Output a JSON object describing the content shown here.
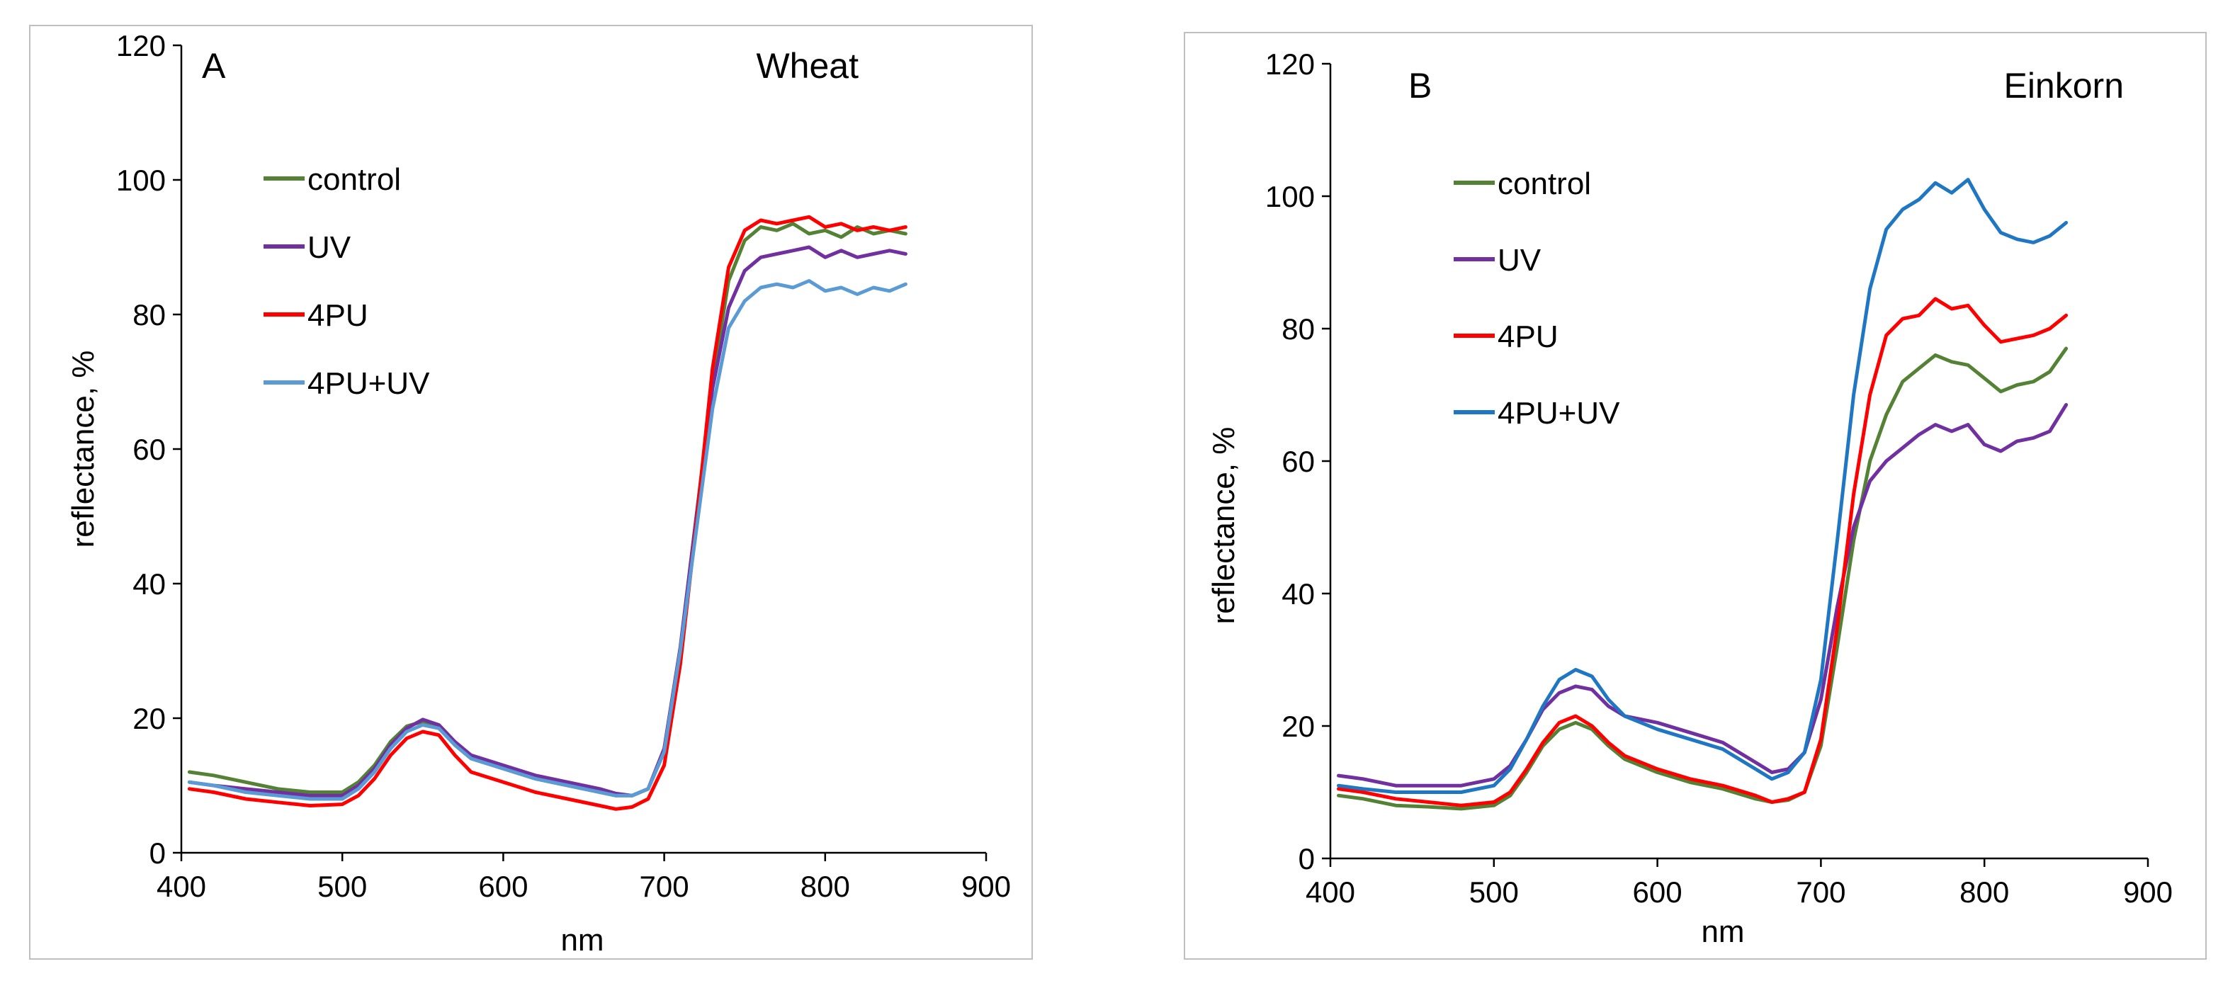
{
  "chart_data": [
    {
      "type": "line",
      "panel_label": "A",
      "crop": "Wheat",
      "xlabel": "nm",
      "ylabel": "reflectance, %",
      "xlim": [
        400,
        900
      ],
      "ylim": [
        0,
        120
      ],
      "xticks": [
        400,
        500,
        600,
        700,
        800,
        900
      ],
      "yticks": [
        0,
        20,
        40,
        60,
        80,
        100,
        120
      ],
      "x": [
        405,
        420,
        440,
        460,
        480,
        500,
        510,
        520,
        530,
        540,
        550,
        560,
        570,
        580,
        600,
        620,
        640,
        660,
        670,
        680,
        690,
        700,
        710,
        720,
        730,
        740,
        750,
        760,
        770,
        780,
        790,
        800,
        810,
        820,
        830,
        840,
        850
      ],
      "series": [
        {
          "name": "control",
          "color": "#548235",
          "values": [
            12.0,
            11.5,
            10.5,
            9.5,
            9.0,
            9.0,
            10.5,
            13.0,
            16.5,
            18.8,
            19.5,
            18.8,
            16.0,
            14.0,
            12.5,
            11.0,
            10.0,
            9.0,
            8.5,
            8.5,
            9.5,
            15.0,
            30.0,
            50.0,
            70.0,
            85.0,
            91.0,
            93.0,
            92.5,
            93.5,
            92.0,
            92.5,
            91.5,
            93.0,
            92.0,
            92.5,
            92.0
          ]
        },
        {
          "name": "UV",
          "color": "#7030A0",
          "values": [
            10.5,
            10.0,
            9.5,
            9.0,
            8.5,
            8.5,
            10.0,
            12.5,
            16.0,
            18.5,
            19.8,
            19.0,
            16.5,
            14.5,
            13.0,
            11.5,
            10.5,
            9.5,
            8.8,
            8.5,
            9.5,
            15.5,
            30.5,
            50.0,
            69.0,
            81.0,
            86.5,
            88.5,
            89.0,
            89.5,
            90.0,
            88.5,
            89.5,
            88.5,
            89.0,
            89.5,
            89.0
          ]
        },
        {
          "name": "4PU",
          "color": "#FF0000",
          "values": [
            9.5,
            9.0,
            8.0,
            7.5,
            7.0,
            7.2,
            8.5,
            11.0,
            14.5,
            17.0,
            18.0,
            17.5,
            14.5,
            12.0,
            10.5,
            9.0,
            8.0,
            7.0,
            6.5,
            6.8,
            8.0,
            13.0,
            28.0,
            49.0,
            72.0,
            87.0,
            92.5,
            94.0,
            93.5,
            94.0,
            94.5,
            93.0,
            93.5,
            92.5,
            93.0,
            92.5,
            93.0
          ]
        },
        {
          "name": "4PU+UV",
          "color": "#5B9BD5",
          "values": [
            10.5,
            10.0,
            9.0,
            8.5,
            8.0,
            8.0,
            9.5,
            12.0,
            15.5,
            18.0,
            19.0,
            18.5,
            16.0,
            14.0,
            12.5,
            11.0,
            10.0,
            9.0,
            8.5,
            8.5,
            9.5,
            15.0,
            30.0,
            48.0,
            66.0,
            78.0,
            82.0,
            84.0,
            84.5,
            84.0,
            85.0,
            83.5,
            84.0,
            83.0,
            84.0,
            83.5,
            84.5
          ]
        }
      ]
    },
    {
      "type": "line",
      "panel_label": "B",
      "crop": "Einkorn",
      "xlabel": "nm",
      "ylabel": "reflectance, %",
      "xlim": [
        400,
        900
      ],
      "ylim": [
        0,
        120
      ],
      "xticks": [
        400,
        500,
        600,
        700,
        800,
        900
      ],
      "yticks": [
        0,
        20,
        40,
        60,
        80,
        100,
        120
      ],
      "x": [
        405,
        420,
        440,
        460,
        480,
        500,
        510,
        520,
        530,
        540,
        550,
        560,
        570,
        580,
        600,
        620,
        640,
        660,
        670,
        680,
        690,
        700,
        710,
        720,
        730,
        740,
        750,
        760,
        770,
        780,
        790,
        800,
        810,
        820,
        830,
        840,
        850
      ],
      "series": [
        {
          "name": "control",
          "color": "#548235",
          "values": [
            9.5,
            9.0,
            8.0,
            7.8,
            7.5,
            8.0,
            9.5,
            13.0,
            17.0,
            19.5,
            20.5,
            19.5,
            17.0,
            15.0,
            13.0,
            11.5,
            10.5,
            9.0,
            8.5,
            8.8,
            10.0,
            17.0,
            32.0,
            48.0,
            60.0,
            67.0,
            72.0,
            74.0,
            76.0,
            75.0,
            74.5,
            72.5,
            70.5,
            71.5,
            72.0,
            73.5,
            77.0
          ]
        },
        {
          "name": "UV",
          "color": "#7030A0",
          "values": [
            12.5,
            12.0,
            11.0,
            11.0,
            11.0,
            12.0,
            14.0,
            18.0,
            22.5,
            25.0,
            26.0,
            25.5,
            23.0,
            21.5,
            20.5,
            19.0,
            17.5,
            14.5,
            13.0,
            13.5,
            16.0,
            24.0,
            38.0,
            50.0,
            57.0,
            60.0,
            62.0,
            64.0,
            65.5,
            64.5,
            65.5,
            62.5,
            61.5,
            63.0,
            63.5,
            64.5,
            68.5
          ]
        },
        {
          "name": "4PU",
          "color": "#FF0000",
          "values": [
            10.5,
            10.0,
            9.0,
            8.5,
            8.0,
            8.5,
            10.0,
            13.5,
            17.5,
            20.5,
            21.5,
            20.0,
            17.5,
            15.5,
            13.5,
            12.0,
            11.0,
            9.5,
            8.5,
            9.0,
            10.0,
            18.0,
            35.0,
            55.0,
            70.0,
            79.0,
            81.5,
            82.0,
            84.5,
            83.0,
            83.5,
            80.5,
            78.0,
            78.5,
            79.0,
            80.0,
            82.0
          ]
        },
        {
          "name": "4PU+UV",
          "color": "#1F77C4",
          "values": [
            11.0,
            10.5,
            10.0,
            10.0,
            10.0,
            11.0,
            13.5,
            18.0,
            23.0,
            27.0,
            28.5,
            27.5,
            24.0,
            21.5,
            19.5,
            18.0,
            16.5,
            13.5,
            12.0,
            13.0,
            16.0,
            27.0,
            48.0,
            70.0,
            86.0,
            95.0,
            98.0,
            99.5,
            102.0,
            100.5,
            102.5,
            98.0,
            94.5,
            93.5,
            93.0,
            94.0,
            96.0
          ]
        }
      ]
    }
  ]
}
